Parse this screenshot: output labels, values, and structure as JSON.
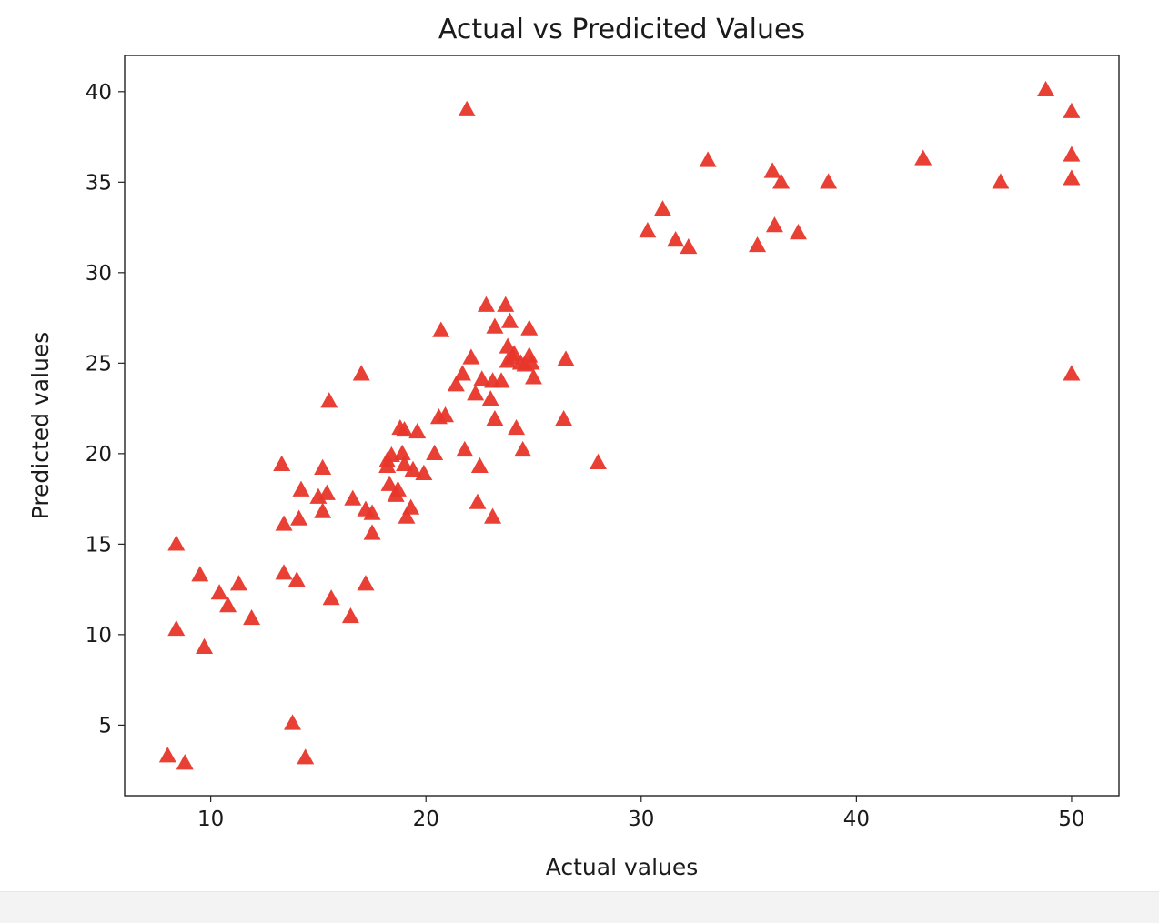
{
  "chart_data": {
    "type": "scatter",
    "title": "Actual vs Predicited Values",
    "xlabel": "Actual values",
    "ylabel": "Predicted values",
    "xlim": [
      6,
      52.2
    ],
    "ylim": [
      1.1,
      42.0
    ],
    "xticks": [
      10,
      20,
      30,
      40,
      50
    ],
    "yticks": [
      5,
      10,
      15,
      20,
      25,
      30,
      35,
      40
    ],
    "marker": "triangle-up",
    "color": "#e8362b",
    "grid": false,
    "series": [
      {
        "points": [
          [
            8.0,
            3.3
          ],
          [
            8.8,
            2.9
          ],
          [
            8.4,
            15.0
          ],
          [
            8.4,
            10.3
          ],
          [
            9.5,
            13.3
          ],
          [
            9.7,
            9.3
          ],
          [
            10.4,
            12.3
          ],
          [
            10.8,
            11.6
          ],
          [
            11.3,
            12.8
          ],
          [
            11.9,
            10.9
          ],
          [
            13.3,
            19.4
          ],
          [
            13.4,
            16.1
          ],
          [
            13.4,
            13.4
          ],
          [
            13.8,
            5.1
          ],
          [
            14.0,
            13.0
          ],
          [
            14.1,
            16.4
          ],
          [
            14.2,
            18.0
          ],
          [
            14.4,
            3.2
          ],
          [
            15.0,
            17.6
          ],
          [
            15.2,
            19.2
          ],
          [
            15.2,
            16.8
          ],
          [
            15.4,
            17.8
          ],
          [
            15.5,
            22.9
          ],
          [
            15.6,
            12.0
          ],
          [
            16.5,
            11.0
          ],
          [
            16.6,
            17.5
          ],
          [
            17.0,
            24.4
          ],
          [
            17.2,
            16.9
          ],
          [
            17.2,
            12.8
          ],
          [
            17.5,
            16.7
          ],
          [
            17.5,
            15.6
          ],
          [
            18.2,
            19.6
          ],
          [
            18.2,
            19.3
          ],
          [
            18.3,
            18.3
          ],
          [
            18.4,
            19.9
          ],
          [
            18.6,
            17.7
          ],
          [
            18.7,
            18.0
          ],
          [
            18.8,
            21.4
          ],
          [
            18.9,
            20.0
          ],
          [
            19.0,
            21.3
          ],
          [
            19.0,
            19.4
          ],
          [
            19.1,
            16.5
          ],
          [
            19.3,
            17.0
          ],
          [
            19.4,
            19.1
          ],
          [
            19.6,
            21.2
          ],
          [
            19.9,
            18.9
          ],
          [
            20.4,
            20.0
          ],
          [
            20.6,
            22.0
          ],
          [
            20.7,
            26.8
          ],
          [
            20.9,
            22.1
          ],
          [
            21.4,
            23.8
          ],
          [
            21.7,
            24.4
          ],
          [
            21.8,
            20.2
          ],
          [
            21.9,
            39.0
          ],
          [
            22.1,
            25.3
          ],
          [
            22.3,
            23.3
          ],
          [
            22.4,
            17.3
          ],
          [
            22.5,
            19.3
          ],
          [
            22.6,
            24.1
          ],
          [
            22.8,
            28.2
          ],
          [
            23.0,
            23.0
          ],
          [
            23.1,
            16.5
          ],
          [
            23.1,
            24.0
          ],
          [
            23.2,
            21.9
          ],
          [
            23.2,
            27.0
          ],
          [
            23.5,
            24.0
          ],
          [
            23.7,
            28.2
          ],
          [
            23.8,
            25.1
          ],
          [
            23.8,
            25.9
          ],
          [
            23.9,
            27.3
          ],
          [
            24.0,
            25.3
          ],
          [
            24.1,
            25.5
          ],
          [
            24.2,
            21.4
          ],
          [
            24.4,
            25.0
          ],
          [
            24.5,
            20.2
          ],
          [
            24.6,
            24.9
          ],
          [
            24.8,
            25.4
          ],
          [
            24.8,
            26.9
          ],
          [
            24.9,
            25.0
          ],
          [
            25.0,
            24.2
          ],
          [
            26.4,
            21.9
          ],
          [
            26.5,
            25.2
          ],
          [
            28.0,
            19.5
          ],
          [
            30.3,
            32.3
          ],
          [
            31.0,
            33.5
          ],
          [
            31.6,
            31.8
          ],
          [
            32.2,
            31.4
          ],
          [
            33.1,
            36.2
          ],
          [
            35.4,
            31.5
          ],
          [
            36.1,
            35.6
          ],
          [
            36.2,
            32.6
          ],
          [
            36.5,
            35.0
          ],
          [
            37.3,
            32.2
          ],
          [
            38.7,
            35.0
          ],
          [
            43.1,
            36.3
          ],
          [
            46.7,
            35.0
          ],
          [
            48.8,
            40.1
          ],
          [
            50.0,
            38.9
          ],
          [
            50.0,
            36.5
          ],
          [
            50.0,
            35.2
          ],
          [
            50.0,
            24.4
          ]
        ]
      }
    ]
  }
}
